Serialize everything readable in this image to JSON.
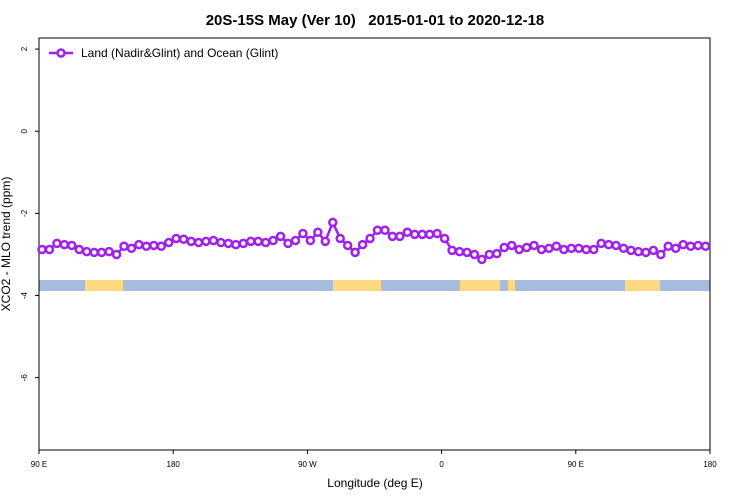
{
  "chart_data": {
    "type": "line",
    "title": "20S-15S May (Ver 10)   2015-01-01 to 2020-12-18",
    "x_label": "Longitude (deg E)",
    "y_label": "XCO2 - MLO trend (ppm)",
    "legend_position": "top-left",
    "xlim": [
      90,
      540
    ],
    "ylim": [
      -7.76,
      2.27
    ],
    "xticks": [
      {
        "value": 90,
        "label": "90 E"
      },
      180,
      {
        "value": 270,
        "label": "90 W"
      },
      {
        "value": 360,
        "label": "0"
      },
      {
        "value": 450,
        "label": "90 E"
      },
      {
        "value": 540,
        "label": "180"
      }
    ],
    "yticks": [
      2,
      0,
      -2,
      -4,
      -6
    ],
    "x": [
      92,
      97,
      102,
      107,
      112,
      117,
      122,
      127,
      132,
      137,
      142,
      147,
      152,
      157,
      162,
      167,
      172,
      177,
      182,
      187,
      192,
      197,
      202,
      207,
      212,
      217,
      222,
      227,
      232,
      237,
      242,
      247,
      252,
      257,
      262,
      267,
      272,
      277,
      282,
      287,
      292,
      297,
      302,
      307,
      312,
      317,
      322,
      327,
      332,
      337,
      342,
      347,
      352,
      357,
      362,
      367,
      372,
      377,
      382,
      387,
      392,
      397,
      402,
      407,
      412,
      417,
      422,
      427,
      432,
      437,
      442,
      447,
      452,
      457,
      462,
      467,
      472,
      477,
      482,
      487,
      492,
      497,
      502,
      507,
      512,
      517,
      522,
      527,
      532,
      537
    ],
    "series": [
      {
        "name": "Land (Nadir&Glint) and Ocean (Glint)",
        "color": "#a020f0",
        "values": [
          -2.88,
          -2.88,
          -2.73,
          -2.76,
          -2.78,
          -2.88,
          -2.93,
          -2.95,
          -2.95,
          -2.93,
          -3.0,
          -2.8,
          -2.85,
          -2.76,
          -2.8,
          -2.78,
          -2.8,
          -2.71,
          -2.61,
          -2.63,
          -2.68,
          -2.71,
          -2.68,
          -2.66,
          -2.71,
          -2.73,
          -2.76,
          -2.73,
          -2.68,
          -2.68,
          -2.71,
          -2.66,
          -2.56,
          -2.73,
          -2.66,
          -2.49,
          -2.66,
          -2.46,
          -2.68,
          -2.22,
          -2.61,
          -2.78,
          -2.95,
          -2.76,
          -2.61,
          -2.41,
          -2.41,
          -2.56,
          -2.56,
          -2.46,
          -2.51,
          -2.51,
          -2.51,
          -2.49,
          -2.61,
          -2.9,
          -2.93,
          -2.95,
          -3.0,
          -3.12,
          -3.0,
          -2.98,
          -2.83,
          -2.78,
          -2.88,
          -2.83,
          -2.78,
          -2.88,
          -2.85,
          -2.8,
          -2.88,
          -2.85,
          -2.85,
          -2.88,
          -2.88,
          -2.73,
          -2.76,
          -2.78,
          -2.85,
          -2.9,
          -2.93,
          -2.95,
          -2.9,
          -3.0,
          -2.8,
          -2.85,
          -2.76,
          -2.8,
          -2.78,
          -2.8
        ]
      }
    ]
  }
}
